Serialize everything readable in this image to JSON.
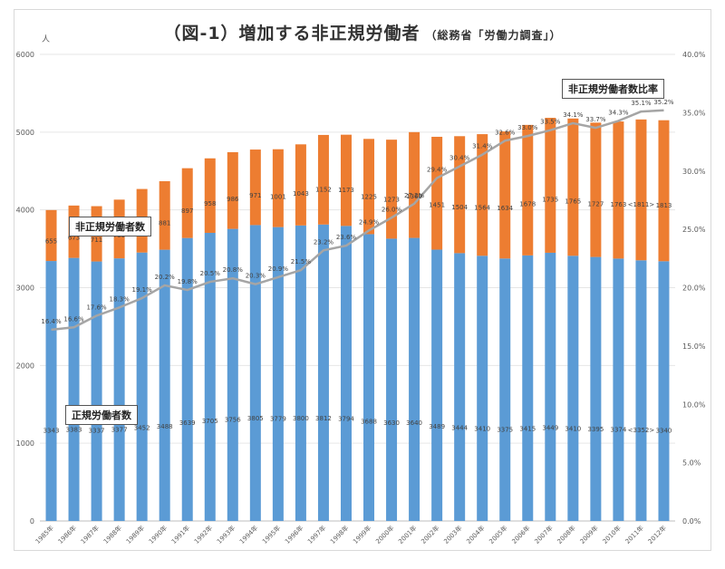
{
  "chart_data": {
    "type": "bar",
    "title": "（図-1）増加する非正規労働者",
    "subtitle": "（総務省「労働力調査」）",
    "y_unit": "人",
    "ylim": [
      0,
      6000
    ],
    "y_ticks": [
      "0",
      "1000",
      "2000",
      "3000",
      "4000",
      "5000",
      "6000"
    ],
    "y2lim": [
      0,
      40
    ],
    "y2_ticks": [
      "0.0%",
      "5.0%",
      "10.0%",
      "15.0%",
      "20.0%",
      "25.0%",
      "30.0%",
      "35.0%",
      "40.0%"
    ],
    "categories": [
      "1985年",
      "1986年",
      "1987年",
      "1988年",
      "1989年",
      "1990年",
      "1991年",
      "1992年",
      "1993年",
      "1994年",
      "1995年",
      "1996年",
      "1997年",
      "1998年",
      "1999年",
      "2000年",
      "2001年",
      "2002年",
      "2003年",
      "2004年",
      "2005年",
      "2006年",
      "2007年",
      "2008年",
      "2009年",
      "2010年",
      "2011年",
      "2012年"
    ],
    "series": [
      {
        "name": "正規労働者数",
        "color": "#5b9bd5",
        "values": [
          3343,
          3383,
          3337,
          3377,
          3452,
          3488,
          3639,
          3705,
          3756,
          3805,
          3779,
          3800,
          3812,
          3794,
          3688,
          3630,
          3640,
          3489,
          3444,
          3410,
          3375,
          3415,
          3449,
          3410,
          3395,
          3374,
          3352,
          3340
        ],
        "labels": [
          "3343",
          "3383",
          "3337",
          "3377",
          "3452",
          "3488",
          "3639",
          "3705",
          "3756",
          "3805",
          "3779",
          "3800",
          "3812",
          "3794",
          "3688",
          "3630",
          "3640",
          "3489",
          "3444",
          "3410",
          "3375",
          "3415",
          "3449",
          "3410",
          "3395",
          "3374",
          "<3352>",
          "3340"
        ]
      },
      {
        "name": "非正規労働者数",
        "color": "#ed7d31",
        "values": [
          655,
          673,
          711,
          755,
          817,
          881,
          897,
          958,
          986,
          971,
          1001,
          1043,
          1152,
          1173,
          1225,
          1273,
          1360,
          1451,
          1504,
          1564,
          1634,
          1678,
          1735,
          1765,
          1727,
          1763,
          1811,
          1813
        ],
        "labels": [
          "655",
          "673",
          "711",
          "755",
          "817",
          "881",
          "897",
          "958",
          "986",
          "971",
          "1001",
          "1043",
          "1152",
          "1173",
          "1225",
          "1273",
          "1360",
          "1451",
          "1504",
          "1564",
          "1634",
          "1678",
          "1735",
          "1765",
          "1727",
          "1763",
          "<1811>",
          "1813"
        ]
      },
      {
        "name": "非正規労働者数比率",
        "axis": "right",
        "color": "#a5a5a5",
        "values": [
          16.4,
          16.6,
          17.6,
          18.3,
          19.1,
          20.2,
          19.8,
          20.5,
          20.8,
          20.3,
          20.9,
          21.5,
          23.2,
          23.6,
          24.9,
          26.0,
          27.2,
          29.4,
          30.4,
          31.4,
          32.6,
          33.0,
          33.5,
          34.1,
          33.7,
          34.3,
          35.1,
          35.2
        ],
        "labels": [
          "16.4%",
          "16.6%",
          "17.6%",
          "18.3%",
          "19.1%",
          "20.2%",
          "19.8%",
          "20.5%",
          "20.8%",
          "20.3%",
          "20.9%",
          "21.5%",
          "23.2%",
          "23.6%",
          "24.9%",
          "26.0%",
          "27.2%",
          "29.4%",
          "30.4%",
          "31.4%",
          "32.6%",
          "33.0%",
          "33.5%",
          "34.1%",
          "33.7%",
          "34.3%",
          "35.1%",
          "35.2%"
        ]
      }
    ],
    "legend_labels": {
      "nonregular": "非正規労働者数",
      "regular": "正規労働者数",
      "ratio": "非正規労働者数比率"
    }
  }
}
